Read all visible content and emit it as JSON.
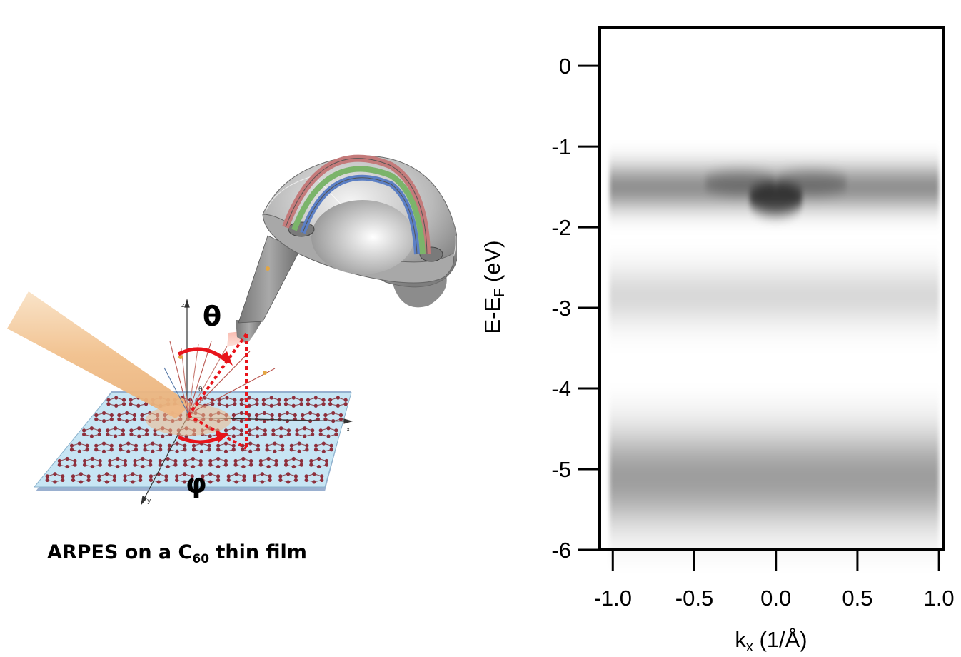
{
  "diagram": {
    "caption_main": "ARPES on a C",
    "caption_sub": "60",
    "caption_tail": " thin film",
    "theta_label": "θ",
    "phi_label": "φ",
    "inner_theta_label": "θ",
    "axis_x": "x",
    "axis_y": "y",
    "axis_z": "z",
    "colors": {
      "beam": "#f3c89a",
      "arrow": "#e8141b",
      "substrate": "#bfe0f2",
      "analyzer": "#9a9a9a",
      "track_red": "#c47a7a",
      "track_green": "#7bb46a",
      "track_blue": "#5b7fc4"
    }
  },
  "chart_data": {
    "type": "heatmap",
    "title": "",
    "xlabel_main": "k",
    "xlabel_sub": "x",
    "xlabel_tail": " (1/Å)",
    "ylabel_main": "E-E",
    "ylabel_sub": "F",
    "ylabel_tail": " (eV)",
    "xlim": [
      -1.08,
      1.03
    ],
    "ylim": [
      -6.0,
      0.47
    ],
    "x_ticks": [
      -1.0,
      -0.5,
      0.0,
      0.5,
      1.0
    ],
    "x_tick_labels": [
      "-1.0",
      "-0.5",
      "0.0",
      "0.5",
      "1.0"
    ],
    "y_ticks": [
      0,
      -1,
      -2,
      -3,
      -4,
      -5,
      -6
    ],
    "y_tick_labels": [
      "0",
      "-1",
      "-2",
      "-3",
      "-4",
      "-5",
      "-6"
    ],
    "data_extent_k": [
      -1.02,
      1.0
    ],
    "bands": [
      {
        "energy_center": -1.5,
        "energy_width": 0.45,
        "intensity": 0.82,
        "dip_k": 0.0,
        "dip_energy": -1.65,
        "dip_intensity": 0.95
      },
      {
        "energy_center": -2.85,
        "energy_width": 0.6,
        "intensity": 0.28
      },
      {
        "energy_center": -5.1,
        "energy_width": 1.0,
        "intensity": 0.72
      }
    ],
    "colormap": "grayscale-inverted"
  }
}
